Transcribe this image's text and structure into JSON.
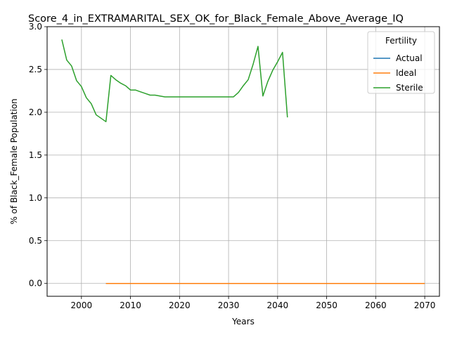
{
  "chart_data": {
    "type": "line",
    "title": "Score_4_in_EXTRAMARITAL_SEX_OK_for_Black_Female_Above_Average_IQ",
    "xlabel": "Years",
    "ylabel": "% of Black_Female Population",
    "xlim": [
      1993,
      2073
    ],
    "ylim": [
      -0.15,
      3.0
    ],
    "xticks": [
      2000,
      2010,
      2020,
      2030,
      2040,
      2050,
      2060,
      2070
    ],
    "xtick_labels": [
      "2000",
      "2010",
      "2020",
      "2030",
      "2040",
      "2050",
      "2060",
      "2070"
    ],
    "yticks": [
      0.0,
      0.5,
      1.0,
      1.5,
      2.0,
      2.5,
      3.0
    ],
    "ytick_labels": [
      "0.0",
      "0.5",
      "1.0",
      "1.5",
      "2.0",
      "2.5",
      "3.0"
    ],
    "grid": true,
    "legend": {
      "title": "Fertility",
      "placement": "top-right"
    },
    "series": [
      {
        "name": "Actual",
        "color": "#1f77b4",
        "x": [
          2005,
          2010,
          2015,
          2020,
          2025,
          2030,
          2035,
          2040,
          2045,
          2050,
          2055,
          2060,
          2065,
          2070
        ],
        "y": [
          0,
          0,
          0,
          0,
          0,
          0,
          0,
          0,
          0,
          0,
          0,
          0,
          0,
          0
        ]
      },
      {
        "name": "Ideal",
        "color": "#ff7f0e",
        "x": [
          2005,
          2010,
          2015,
          2020,
          2025,
          2030,
          2035,
          2040,
          2045,
          2050,
          2055,
          2060,
          2065,
          2070
        ],
        "y": [
          0,
          0,
          0,
          0,
          0,
          0,
          0,
          0,
          0,
          0,
          0,
          0,
          0,
          0
        ]
      },
      {
        "name": "Sterile",
        "color": "#2ca02c",
        "x": [
          1996,
          1997,
          1998,
          1999,
          2000,
          2001,
          2002,
          2003,
          2004,
          2005,
          2006,
          2007,
          2008,
          2009,
          2010,
          2011,
          2012,
          2013,
          2014,
          2015,
          2016,
          2017,
          2018,
          2019,
          2020,
          2021,
          2022,
          2023,
          2024,
          2025,
          2026,
          2027,
          2028,
          2029,
          2030,
          2031,
          2032,
          2033,
          2034,
          2035,
          2036,
          2037,
          2038,
          2039,
          2040,
          2041,
          2042
        ],
        "y": [
          2.85,
          2.61,
          2.54,
          2.37,
          2.3,
          2.17,
          2.1,
          1.97,
          1.93,
          1.89,
          2.43,
          2.38,
          2.34,
          2.31,
          2.26,
          2.26,
          2.24,
          2.22,
          2.2,
          2.2,
          2.19,
          2.18,
          2.18,
          2.18,
          2.18,
          2.18,
          2.18,
          2.18,
          2.18,
          2.18,
          2.18,
          2.18,
          2.18,
          2.18,
          2.18,
          2.18,
          2.23,
          2.31,
          2.38,
          2.56,
          2.77,
          2.19,
          2.36,
          2.49,
          2.59,
          2.7,
          1.94
        ]
      }
    ]
  }
}
